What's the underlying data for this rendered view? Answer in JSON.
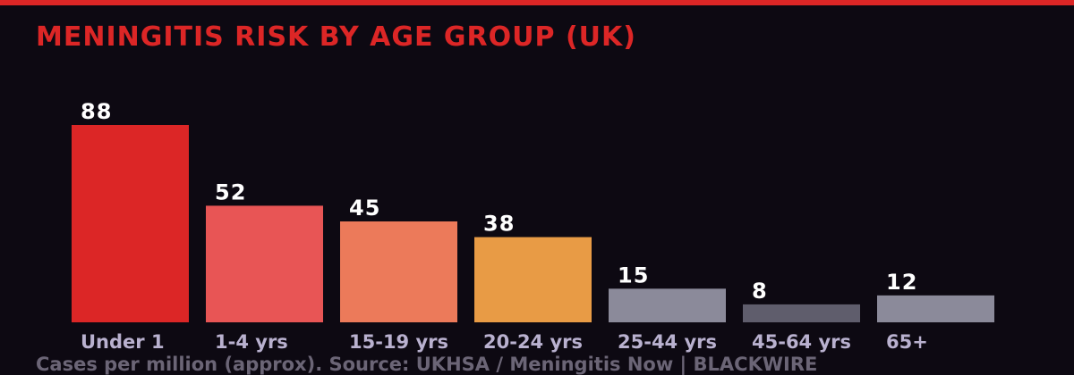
{
  "colors": {
    "background": "#0d0912",
    "accent": "#dc2626",
    "title": "#dc2626"
  },
  "title": "MENINGITIS RISK BY AGE GROUP (UK)",
  "footer": "Cases per million (approx). Source: UKHSA / Meningitis Now  |  BLACKWIRE",
  "chart_data": {
    "type": "bar",
    "title": "MENINGITIS RISK BY AGE GROUP (UK)",
    "categories": [
      "Under 1",
      "1-4 yrs",
      "15-19 yrs",
      "20-24 yrs",
      "25-44 yrs",
      "45-64 yrs",
      "65+"
    ],
    "values": [
      88,
      52,
      45,
      38,
      15,
      8,
      12
    ],
    "bar_colors": [
      "#dc2626",
      "#e85555",
      "#ec7a5a",
      "#e89b45",
      "#8b8a9a",
      "#5f5d6c",
      "#8b8a9a"
    ],
    "ylim": [
      0,
      88
    ],
    "grid": false,
    "legend": "none",
    "xlabel": "",
    "ylabel": ""
  }
}
